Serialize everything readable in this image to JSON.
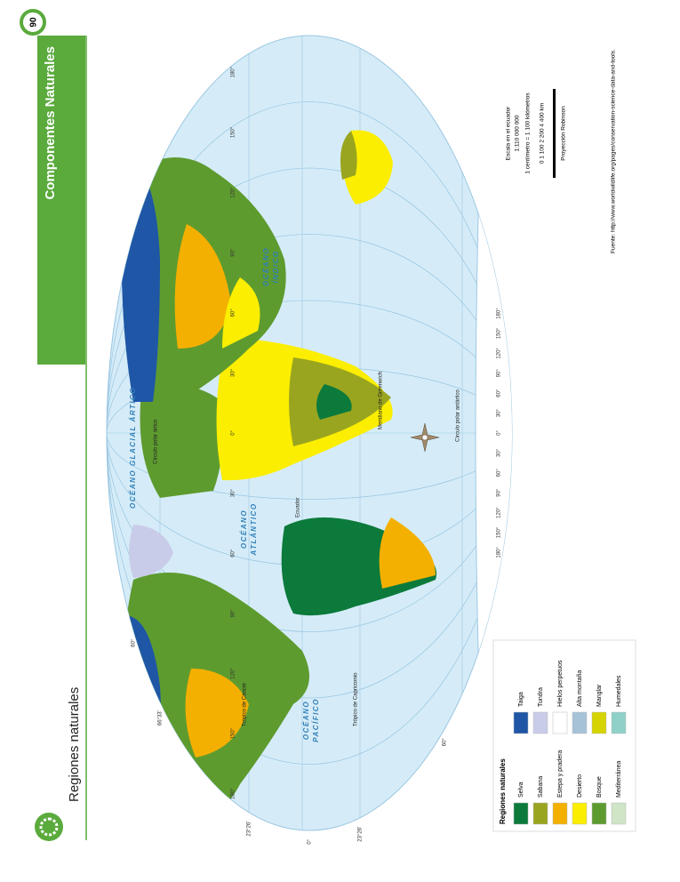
{
  "page_number": "90",
  "header": {
    "title": "Componentes Naturales"
  },
  "section_title": "Regiones naturales",
  "map": {
    "oceans": [
      "OCÉANO GLACIAL ÁRTICO",
      "OCÉANO ATLÁNTICO",
      "OCÉANO PACÍFICO",
      "OCÉANO ÍNDICO"
    ],
    "lines": [
      "Círculo polar ártico",
      "Trópico de Cáncer",
      "Ecuador",
      "Trópico de Capricornio",
      "Círculo polar antártico"
    ],
    "meridian": "Meridiano de Greenwich",
    "longitudes": [
      "180°",
      "150°",
      "120°",
      "90°",
      "60°",
      "30°",
      "0°",
      "30°",
      "60°",
      "90°",
      "120°",
      "150°",
      "180°"
    ],
    "latitudes": [
      "60°",
      "66°33'",
      "23°26'",
      "0°",
      "23°26'",
      "60°"
    ]
  },
  "legend": {
    "title": "Regiones naturales",
    "items": [
      {
        "label": "Selva",
        "color": "#0b7a3b"
      },
      {
        "label": "Sabana",
        "color": "#9aa51f"
      },
      {
        "label": "Estepa y pradera",
        "color": "#f4b000"
      },
      {
        "label": "Desierto",
        "color": "#fbee00"
      },
      {
        "label": "Bosque",
        "color": "#5e9b2f"
      },
      {
        "label": "Mediterránea",
        "color": "#cfe5c6"
      },
      {
        "label": "Taiga",
        "color": "#1f56a6"
      },
      {
        "label": "Tundra",
        "color": "#c9cce8"
      },
      {
        "label": "Hielos perpetuos",
        "color": "#ffffff"
      },
      {
        "label": "Alta montaña",
        "color": "#a6c2d7"
      },
      {
        "label": "Manglar",
        "color": "#d6d400"
      },
      {
        "label": "Humedales",
        "color": "#8fd1c8"
      }
    ]
  },
  "scale": {
    "lines": [
      "Escala en el ecuador",
      "1:110 000 000",
      "1 centímetro = 1 100 kilómetros",
      "0     1 100     2 200          4 400 km",
      "Proyección Robinson"
    ]
  },
  "source": "Fuente: http://www.worldwildlife.org/pages/conservation-science-data-and-tools."
}
